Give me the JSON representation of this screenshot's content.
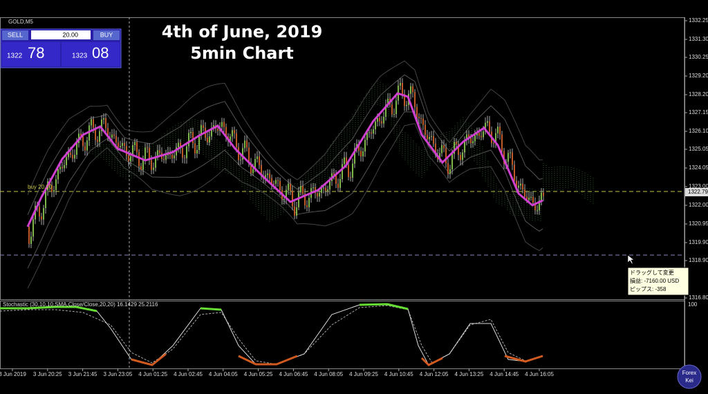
{
  "header": {
    "symbol": "GOLD,M5"
  },
  "trade_panel": {
    "sell_label": "SELL",
    "lot": "20.00",
    "buy_label": "BUY",
    "bid_prefix": "1322",
    "bid_main": "78",
    "ask_prefix": "1323",
    "ask_main": "08"
  },
  "title": [
    "4th of June, 2019",
    "5min Chart"
  ],
  "order_line_label": "buy 20.00",
  "price_axis": [
    "1332.25",
    "1331.30",
    "1330.25",
    "1329.20",
    "1328.20",
    "1327.15",
    "1326.10",
    "1325.05",
    "1324.05",
    "1323.00",
    "1322.00",
    "1320.95",
    "1319.90",
    "1318.90",
    "1316.80"
  ],
  "current_price": "1322.79",
  "tooltip": {
    "lines": [
      "ドラッグして変更",
      "損益: -7160.00 USD",
      "ピップス: -358"
    ]
  },
  "indicator": {
    "label": "Stochastic (30,10,10,SMA,Close/Close,20,20) 16.1429 25.2116",
    "axis_label": "100"
  },
  "time_axis": [
    "3 Jun 2019",
    "3 Jun 20:25",
    "3 Jun 21:45",
    "3 Jun 23:05",
    "4 Jun 01:25",
    "4 Jun 02:45",
    "4 Jun 04:05",
    "4 Jun 05:25",
    "4 Jun 06:45",
    "4 Jun 08:05",
    "4 Jun 09:25",
    "4 Jun 10:45",
    "4 Jun 12:05",
    "4 Jun 13:25",
    "4 Jun 14:45",
    "4 Jun 16:05"
  ],
  "watermark": [
    "Forex",
    "Kei"
  ]
}
